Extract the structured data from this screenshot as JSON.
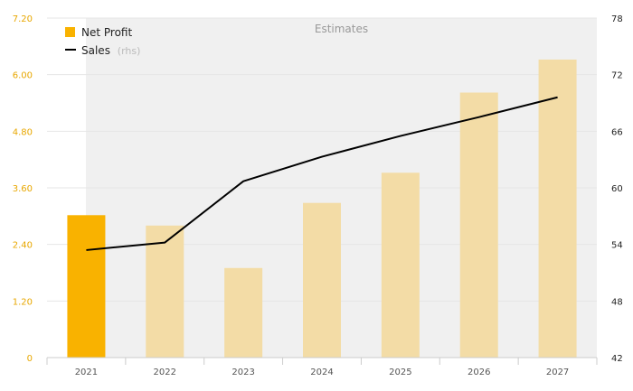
{
  "chart_data": {
    "type": "bar",
    "categories": [
      "2021",
      "2022",
      "2023",
      "2024",
      "2025",
      "2026",
      "2027"
    ],
    "series": [
      {
        "name": "Net Profit",
        "kind": "bar",
        "axis": "left",
        "values": [
          3.02,
          2.8,
          1.9,
          3.28,
          3.92,
          5.62,
          6.32
        ],
        "color": "#f9b200",
        "estimate_color": "#f3dca6"
      },
      {
        "name": "Sales",
        "note": "(rhs)",
        "kind": "line",
        "axis": "right",
        "values": [
          53.4,
          54.2,
          60.7,
          63.3,
          65.5,
          67.5,
          69.6
        ],
        "color": "#000000"
      }
    ],
    "estimates_from": "2022",
    "annotation": "Estimates",
    "y_left": {
      "ticks": [
        "0",
        "1.20",
        "2.40",
        "3.60",
        "4.80",
        "6.00",
        "7.20"
      ],
      "ylim": [
        0,
        7.2
      ]
    },
    "y_right": {
      "ticks": [
        "42",
        "48",
        "54",
        "60",
        "66",
        "72",
        "78"
      ],
      "ylim": [
        42,
        78
      ]
    },
    "legend": "top-left",
    "grid": true
  }
}
